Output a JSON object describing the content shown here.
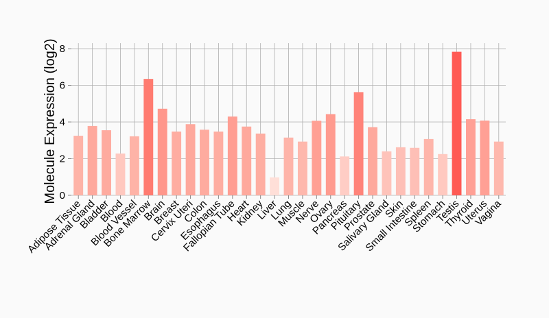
{
  "chart_data": {
    "type": "bar",
    "ylabel": "Molecule Expression (log2)",
    "xlabel": "",
    "ylim": [
      0,
      8.3
    ],
    "yticks": [
      0,
      2,
      4,
      6,
      8
    ],
    "ytick_labels": [
      "0",
      "2",
      "4",
      "6",
      "8"
    ],
    "grid": true,
    "categories": [
      "Adipose Tissue",
      "Adrenal Gland",
      "Bladder",
      "Blood",
      "Blood Vessel",
      "Bone Marrow",
      "Brain",
      "Breast",
      "Cervix Uteri",
      "Colon",
      "Esophagus",
      "Fallopian Tube",
      "Heart",
      "Kidney",
      "Liver",
      "Lung",
      "Muscle",
      "Nerve",
      "Ovary",
      "Pancreas",
      "Pituitary",
      "Prostate",
      "Salivary Gland",
      "Skin",
      "Small Intestine",
      "Spleen",
      "Stomach",
      "Testis",
      "Thyroid",
      "Uterus",
      "Vagina"
    ],
    "values": [
      3.25,
      3.78,
      3.55,
      2.28,
      3.22,
      6.35,
      4.72,
      3.48,
      3.88,
      3.58,
      3.48,
      4.3,
      3.75,
      3.37,
      0.98,
      3.15,
      2.93,
      4.07,
      4.43,
      2.12,
      5.63,
      3.72,
      2.4,
      2.62,
      2.59,
      3.07,
      2.25,
      7.83,
      4.15,
      4.08,
      2.93
    ],
    "bar_colors": [
      "#feb3a7",
      "#fea99d",
      "#feab9f",
      "#ffc8bf",
      "#feb3a7",
      "#ff7b70",
      "#ff978c",
      "#feada1",
      "#fea89c",
      "#feab9f",
      "#feada1",
      "#ff9e93",
      "#fea99d",
      "#feaea2",
      "#ffdfd8",
      "#feb4a9",
      "#feb8ad",
      "#ffa094",
      "#ff9b8f",
      "#ffcdc5",
      "#ff8379",
      "#fea99d",
      "#fec3ba",
      "#febfb6",
      "#febfb6",
      "#feb5aa",
      "#ffc9c0",
      "#ff5a54",
      "#ffa095",
      "#ffa095",
      "#feb8ad"
    ],
    "grid_color": "#b0b0b0"
  }
}
